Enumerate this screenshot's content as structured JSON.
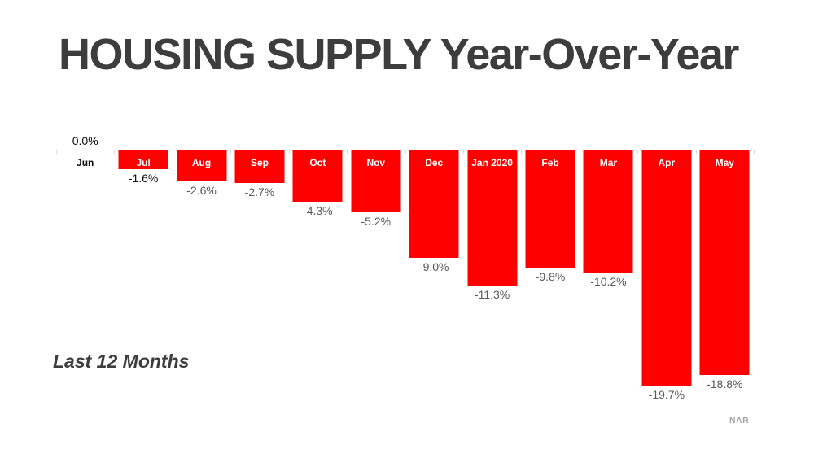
{
  "title": "HOUSING SUPPLY Year-Over-Year",
  "subtitle": "Last 12 Months",
  "source": "NAR",
  "colors": {
    "bar": "#ff0000",
    "title_text": "#3d3d3d",
    "subtitle_text": "#3d3d3d",
    "bar_label": "#ffffff",
    "zero_category_label": "#0d0d0d",
    "value_label": "#595959",
    "value_label_emphasis": "#0d0d0d",
    "axis_line": "#d9d9d9",
    "source_text": "#a6a6a6",
    "background": "#ffffff"
  },
  "chart_data": {
    "type": "bar",
    "orientation": "vertical",
    "title": "HOUSING SUPPLY Year-Over-Year",
    "xlabel": "",
    "ylabel": "",
    "categories": [
      "Jun",
      "Jul",
      "Aug",
      "Sep",
      "Oct",
      "Nov",
      "Dec",
      "Jan 2020",
      "Feb",
      "Mar",
      "Apr",
      "May"
    ],
    "values": [
      0.0,
      -1.6,
      -2.6,
      -2.7,
      -4.3,
      -5.2,
      -9.0,
      -11.3,
      -9.8,
      -10.2,
      -19.7,
      -18.8
    ],
    "value_labels": [
      "0.0%",
      "-1.6%",
      "-2.6%",
      "-2.7%",
      "-4.3%",
      "-5.2%",
      "-9.0%",
      "-11.3%",
      "-9.8%",
      "-10.2%",
      "-19.7%",
      "-18.8%"
    ],
    "emphasized_label_indexes": [
      0,
      1
    ],
    "ylim": [
      -20,
      0
    ],
    "axis_position": "top",
    "grid": false,
    "legend": false,
    "annotation": "Last 12 Months",
    "source": "NAR"
  }
}
